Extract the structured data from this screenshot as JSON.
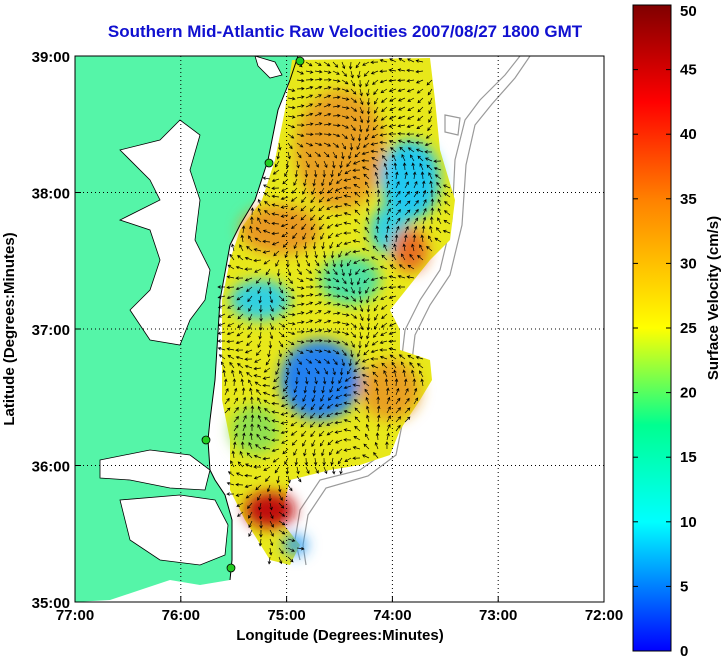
{
  "title": "Southern Mid-Atlantic Raw Velocities 2007/08/27 1800 GMT",
  "map": {
    "xlabel": "Longitude (Degrees:Minutes)",
    "ylabel": "Latitude (Degrees:Minutes)",
    "lon_ticks": [
      "77:00",
      "76:00",
      "75:00",
      "74:00",
      "73:00",
      "72:00"
    ],
    "lat_ticks": [
      "39:00",
      "38:00",
      "37:00",
      "36:00",
      "35:00"
    ],
    "lon_range": [
      -77,
      -72
    ],
    "lat_range": [
      35,
      39
    ],
    "colors": {
      "land": "#55f5a8",
      "coastline": "#000000",
      "bathymetry": "#9a9a9a",
      "site_marker": "#22cc22",
      "grid": "#000000"
    }
  },
  "colorbar": {
    "label": "Surface Velocity (cm/s)",
    "ticks": [
      "0",
      "5",
      "10",
      "15",
      "20",
      "25",
      "30",
      "35",
      "40",
      "45",
      "50"
    ],
    "range": [
      0,
      50
    ],
    "stops": [
      "#0000ff",
      "#00ffff",
      "#00ff80",
      "#ffff00",
      "#ff8000",
      "#ff0000",
      "#800000"
    ]
  }
}
